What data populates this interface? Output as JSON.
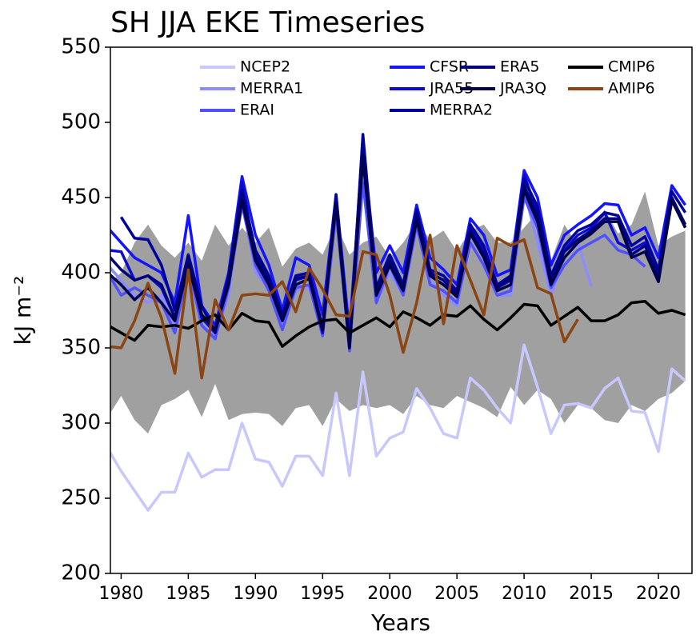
{
  "chart_data": {
    "type": "line",
    "title": "SH JJA EKE Timeseries",
    "xlabel": "Years",
    "ylabel": "kJ m⁻²",
    "x": [
      1979,
      1980,
      1981,
      1982,
      1983,
      1984,
      1985,
      1986,
      1987,
      1988,
      1989,
      1990,
      1991,
      1992,
      1993,
      1994,
      1995,
      1996,
      1997,
      1998,
      1999,
      2000,
      2001,
      2002,
      2003,
      2004,
      2005,
      2006,
      2007,
      2008,
      2009,
      2010,
      2011,
      2012,
      2013,
      2014,
      2015,
      2016,
      2017,
      2018,
      2019,
      2020,
      2021,
      2022
    ],
    "xlim": [
      1979.2,
      2022.5
    ],
    "xticks": [
      1980,
      1985,
      1990,
      1995,
      2000,
      2005,
      2010,
      2015,
      2020
    ],
    "ylim": [
      200,
      550
    ],
    "yticks": [
      200,
      250,
      300,
      350,
      400,
      450,
      500,
      550
    ],
    "spread": {
      "color": "#a0a0a0",
      "upper": [
        392,
        400,
        420,
        432,
        418,
        410,
        420,
        408,
        432,
        418,
        430,
        420,
        430,
        404,
        416,
        420,
        412,
        432,
        412,
        420,
        424,
        410,
        420,
        434,
        422,
        428,
        414,
        428,
        432,
        420,
        420,
        430,
        440,
        408,
        432,
        418,
        430,
        442,
        426,
        432,
        454,
        418,
        424,
        428
      ],
      "lower": [
        304,
        318,
        302,
        293,
        312,
        316,
        322,
        304,
        326,
        302,
        306,
        307,
        306,
        298,
        310,
        312,
        298,
        316,
        308,
        312,
        310,
        312,
        306,
        318,
        312,
        310,
        318,
        314,
        310,
        304,
        324,
        312,
        322,
        316,
        300,
        312,
        310,
        302,
        300,
        312,
        308,
        316,
        320,
        328
      ]
    },
    "series": [
      {
        "name": "NCEP2",
        "color": "#c8c8ff",
        "values": [
          283,
          268,
          255,
          242,
          254,
          254,
          280,
          264,
          269,
          269,
          300,
          276,
          274,
          258,
          278,
          278,
          265,
          320,
          265,
          334,
          278,
          290,
          294,
          323,
          310,
          293,
          290,
          330,
          322,
          310,
          300,
          352,
          324,
          293,
          312,
          313,
          310,
          323,
          330,
          308,
          307,
          281,
          336,
          328
        ]
      },
      {
        "name": "MERRA1",
        "color": "#8c8cff",
        "values": [
          405,
          395,
          385,
          380,
          385,
          365,
          400,
          365,
          358,
          385,
          450,
          400,
          390,
          365,
          388,
          390,
          365,
          440,
          355,
          470,
          380,
          400,
          385,
          430,
          395,
          385,
          378,
          425,
          410,
          385,
          385,
          455,
          420,
          385,
          410,
          420,
          391,
          null,
          null,
          null,
          null,
          null,
          null,
          null
        ]
      },
      {
        "name": "ERAI",
        "color": "#5050ff",
        "values": [
          400,
          385,
          390,
          385,
          380,
          360,
          405,
          365,
          356,
          390,
          445,
          405,
          388,
          362,
          390,
          392,
          358,
          440,
          348,
          460,
          380,
          405,
          385,
          432,
          392,
          388,
          380,
          420,
          405,
          385,
          388,
          450,
          430,
          390,
          405,
          415,
          420,
          425,
          415,
          412,
          404,
          null,
          null,
          null
        ]
      },
      {
        "name": "CFSR",
        "color": "#1414ff",
        "values": [
          430,
          420,
          410,
          405,
          400,
          380,
          438,
          378,
          365,
          400,
          464,
          425,
          405,
          375,
          410,
          405,
          372,
          452,
          360,
          485,
          400,
          418,
          400,
          445,
          410,
          402,
          392,
          436,
          425,
          398,
          402,
          468,
          450,
          405,
          425,
          432,
          438,
          446,
          445,
          425,
          430,
          410,
          458,
          445
        ]
      },
      {
        "name": "JRA55",
        "color": "#0a0ad0",
        "values": [
          415,
          414,
          395,
          398,
          390,
          370,
          410,
          370,
          360,
          395,
          460,
          410,
          395,
          370,
          395,
          398,
          360,
          450,
          350,
          490,
          385,
          410,
          390,
          440,
          400,
          395,
          385,
          430,
          415,
          390,
          395,
          465,
          440,
          395,
          415,
          425,
          430,
          440,
          420,
          415,
          420,
          395,
          450,
          430
        ]
      },
      {
        "name": "MERRA2",
        "color": "#00009a",
        "values": [
          null,
          437,
          423,
          422,
          405,
          375,
          412,
          378,
          360,
          398,
          455,
          415,
          398,
          372,
          398,
          400,
          362,
          452,
          352,
          492,
          390,
          412,
          392,
          442,
          402,
          398,
          388,
          432,
          418,
          392,
          398,
          462,
          444,
          398,
          418,
          428,
          432,
          440,
          438,
          418,
          424,
          402,
          454,
          440
        ]
      },
      {
        "name": "ERA5",
        "color": "#000080",
        "values": [
          412,
          402,
          395,
          398,
          392,
          370,
          410,
          372,
          362,
          395,
          452,
          412,
          395,
          370,
          396,
          398,
          364,
          446,
          352,
          476,
          388,
          408,
          390,
          438,
          400,
          395,
          386,
          428,
          412,
          390,
          396,
          458,
          438,
          396,
          414,
          422,
          428,
          436,
          436,
          412,
          418,
          398,
          450,
          432
        ]
      },
      {
        "name": "JRA3Q",
        "color": "#00004b",
        "values": [
          400,
          392,
          382,
          390,
          380,
          368,
          405,
          372,
          362,
          392,
          448,
          408,
          392,
          368,
          392,
          396,
          362,
          445,
          350,
          478,
          385,
          405,
          388,
          435,
          398,
          392,
          384,
          426,
          410,
          388,
          392,
          455,
          434,
          392,
          410,
          420,
          426,
          434,
          434,
          410,
          414,
          394,
          448,
          430
        ]
      },
      {
        "name": "CMIP6",
        "color": "#000000",
        "values": [
          365,
          360,
          355,
          365,
          364,
          365,
          363,
          368,
          372,
          362,
          373,
          368,
          367,
          351,
          358,
          364,
          368,
          369,
          360,
          365,
          370,
          364,
          374,
          370,
          365,
          372,
          371,
          378,
          369,
          362,
          370,
          379,
          378,
          365,
          371,
          377,
          368,
          368,
          372,
          380,
          381,
          373,
          375,
          372
        ]
      },
      {
        "name": "AMIP6",
        "color": "#8b4513",
        "values": [
          351,
          350,
          368,
          393,
          370,
          333,
          402,
          330,
          382,
          362,
          385,
          386,
          385,
          394,
          374,
          403,
          389,
          372,
          371,
          414,
          412,
          385,
          347,
          380,
          425,
          366,
          418,
          395,
          372,
          423,
          418,
          422,
          390,
          386,
          354,
          369,
          null,
          null,
          null,
          null,
          null,
          null,
          null,
          null
        ]
      }
    ]
  }
}
